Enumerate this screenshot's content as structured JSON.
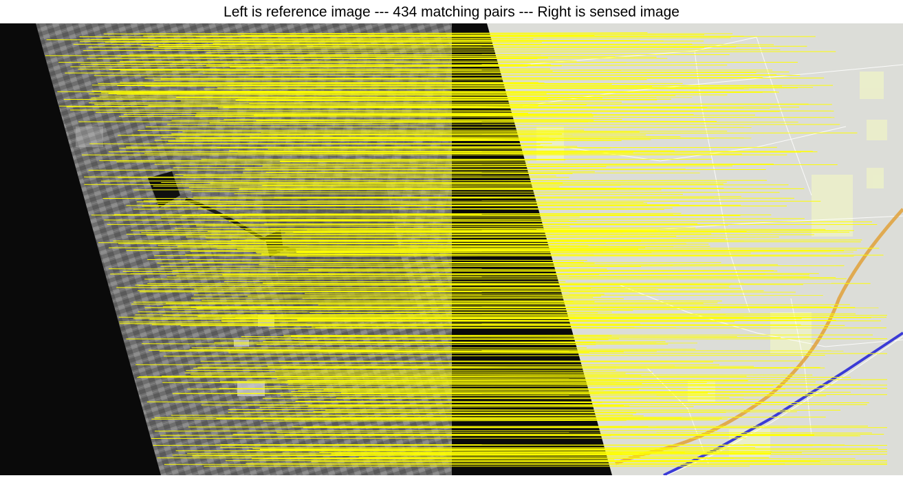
{
  "title": "Left is reference image --- 434 matching pairs --- Right is sensed image",
  "figure": {
    "left_image": "reference-satellite-image",
    "right_image": "sensed-map-image",
    "match_line_count": 434,
    "colors": {
      "match_line": "#ffff00",
      "background_black": "#0a0a0a",
      "map_background": "#dcddd8",
      "road_white": "#ffffff",
      "highway_orange": "#e0a13a",
      "railway_blue": "#3b3bd6",
      "urban_patch": "#eef2c8"
    }
  }
}
